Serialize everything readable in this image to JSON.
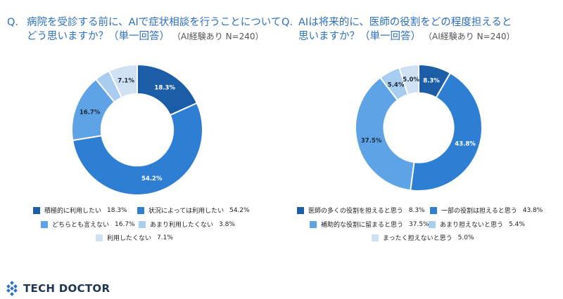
{
  "charts": [
    {
      "question_prefix": "Q.",
      "question_line1": "病院を受診する前に、AIで症状相談を行うことについて",
      "question_line2": "どう思いますか？（単一回答）",
      "note": "（AI経験あり N=240）"
    },
    {
      "question_prefix": "Q.",
      "question_line1": "AIは将来的に、医師の役割をどの程度担えると",
      "question_line2": "思いますか？（単一回答）",
      "note": "（AI経験あり N=240）"
    }
  ],
  "chart_data": [
    {
      "type": "pie",
      "donut": true,
      "title": "",
      "categories": [
        "積極的に利用したい",
        "状況によっては利用したい",
        "どちらとも言えない",
        "あまり利用したくない",
        "利用したくない"
      ],
      "values": [
        18.3,
        54.2,
        16.7,
        3.8,
        7.1
      ],
      "value_labels": [
        "18.3%",
        "54.2%",
        "16.7%",
        "",
        "7.1%"
      ],
      "legend_values": [
        "18.3%",
        "54.2%",
        "16.7%",
        "3.8%",
        "7.1%"
      ],
      "colors": [
        "#1b5da6",
        "#2e7fd4",
        "#5ea3e6",
        "#a9cdf1",
        "#cfe1f2"
      ],
      "legend": "bottom"
    },
    {
      "type": "pie",
      "donut": true,
      "title": "",
      "categories": [
        "医師の多くの役割を担えると思う",
        "一部の役割は担えると思う",
        "補助的な役割に留まると思う",
        "あまり担えないと思う",
        "まったく担えないと思う"
      ],
      "values": [
        8.3,
        43.8,
        37.5,
        5.4,
        5.0
      ],
      "value_labels": [
        "8.3%",
        "43.8%",
        "37.5%",
        "5.4%",
        "5.0%"
      ],
      "legend_values": [
        "8.3%",
        "43.8%",
        "37.5%",
        "5.4%",
        "5.0%"
      ],
      "colors": [
        "#1b5da6",
        "#2e7fd4",
        "#5ea3e6",
        "#a9cdf1",
        "#cfe1f2"
      ],
      "legend": "bottom"
    }
  ],
  "brand": {
    "name": "TECH DOCTOR",
    "color": "#1f3553"
  }
}
